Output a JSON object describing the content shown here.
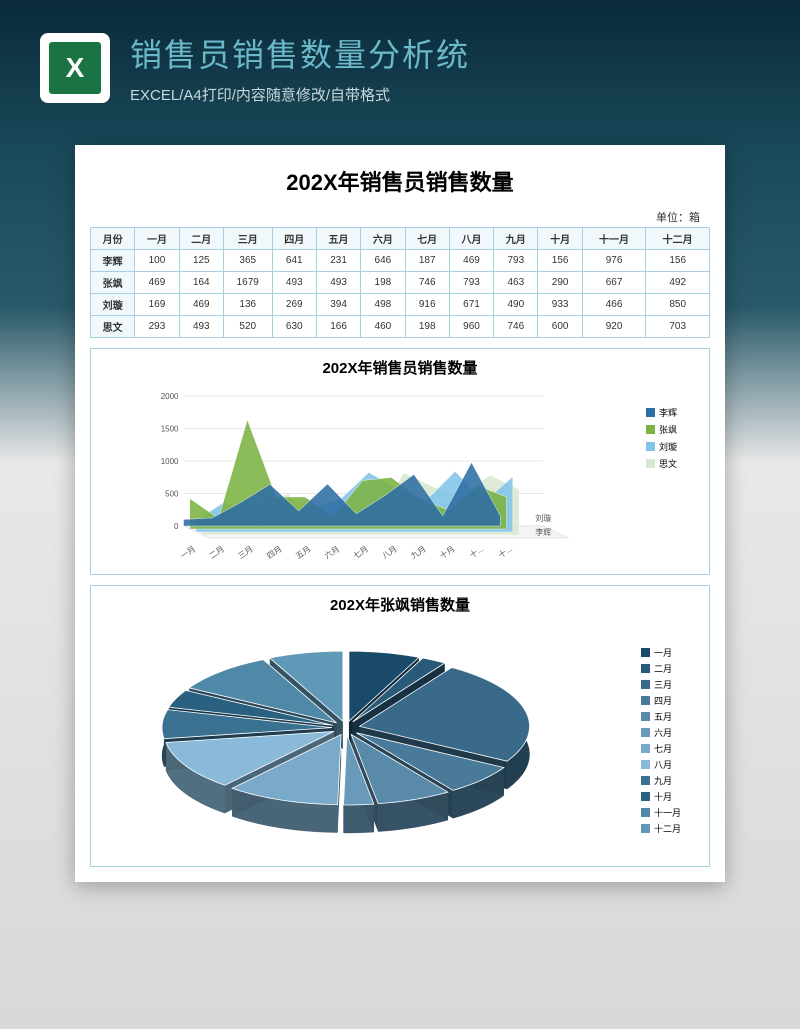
{
  "header": {
    "title": "销售员销售数量分析统",
    "subtitle": "EXCEL/A4打印/内容随意修改/自带格式"
  },
  "document": {
    "title": "202X年销售员销售数量",
    "unit": "单位：箱"
  },
  "table": {
    "columns": [
      "月份",
      "一月",
      "二月",
      "三月",
      "四月",
      "五月",
      "六月",
      "七月",
      "八月",
      "九月",
      "十月",
      "十一月",
      "十二月"
    ],
    "rows": [
      {
        "name": "李辉",
        "values": [
          100,
          125,
          365,
          641,
          231,
          646,
          187,
          469,
          793,
          156,
          976,
          156
        ]
      },
      {
        "name": "张飒",
        "values": [
          469,
          164,
          1679,
          493,
          493,
          198,
          746,
          793,
          463,
          290,
          667,
          492
        ]
      },
      {
        "name": "刘璇",
        "values": [
          169,
          469,
          136,
          269,
          394,
          498,
          916,
          671,
          490,
          933,
          466,
          850
        ]
      },
      {
        "name": "思文",
        "values": [
          293,
          493,
          520,
          630,
          166,
          460,
          198,
          960,
          746,
          600,
          920,
          703
        ]
      }
    ]
  },
  "area_chart": {
    "type": "3d-area",
    "title": "202X年销售员销售数量",
    "x_categories": [
      "一月",
      "二月",
      "三月",
      "四月",
      "五月",
      "六月",
      "七月",
      "八月",
      "九月",
      "十月",
      "十...",
      "十..."
    ],
    "ylim": [
      0,
      2000
    ],
    "ytick_step": 500,
    "yticks": [
      0,
      500,
      1000,
      1500,
      2000
    ],
    "series": [
      {
        "name": "李辉",
        "color": "#2e6da4",
        "values": [
          100,
          125,
          365,
          641,
          231,
          646,
          187,
          469,
          793,
          156,
          976,
          156
        ]
      },
      {
        "name": "张飒",
        "color": "#7cb342",
        "values": [
          469,
          164,
          1679,
          493,
          493,
          198,
          746,
          793,
          463,
          290,
          667,
          492
        ]
      },
      {
        "name": "刘璇",
        "color": "#81c4e8",
        "values": [
          169,
          469,
          136,
          269,
          394,
          498,
          916,
          671,
          490,
          933,
          466,
          850
        ]
      },
      {
        "name": "思文",
        "color": "#d8e8d0",
        "values": [
          293,
          493,
          520,
          630,
          166,
          460,
          198,
          960,
          746,
          600,
          920,
          703
        ]
      }
    ],
    "depth_labels": [
      "刘璇",
      "李辉"
    ],
    "grid_color": "#d0d0d0",
    "background_color": "#ffffff",
    "label_fontsize": 8
  },
  "pie_chart": {
    "type": "3d-pie-exploded",
    "title": "202X年张飒销售数量",
    "slices": [
      {
        "label": "一月",
        "value": 469,
        "color": "#1a4a6a"
      },
      {
        "label": "二月",
        "value": 164,
        "color": "#2a5a7a"
      },
      {
        "label": "三月",
        "value": 1679,
        "color": "#3a6a8a"
      },
      {
        "label": "四月",
        "value": 493,
        "color": "#4a7a9a"
      },
      {
        "label": "五月",
        "value": 493,
        "color": "#5a8aaa"
      },
      {
        "label": "六月",
        "value": 198,
        "color": "#6a9aba"
      },
      {
        "label": "七月",
        "value": 746,
        "color": "#7aaaca"
      },
      {
        "label": "八月",
        "value": 793,
        "color": "#8abada"
      },
      {
        "label": "九月",
        "value": 463,
        "color": "#3a7090"
      },
      {
        "label": "十月",
        "value": 290,
        "color": "#2a6080"
      },
      {
        "label": "十一月",
        "value": 667,
        "color": "#5088a8"
      },
      {
        "label": "十二月",
        "value": 492,
        "color": "#6098b8"
      }
    ],
    "background_color": "#ffffff",
    "label_fontsize": 9
  }
}
